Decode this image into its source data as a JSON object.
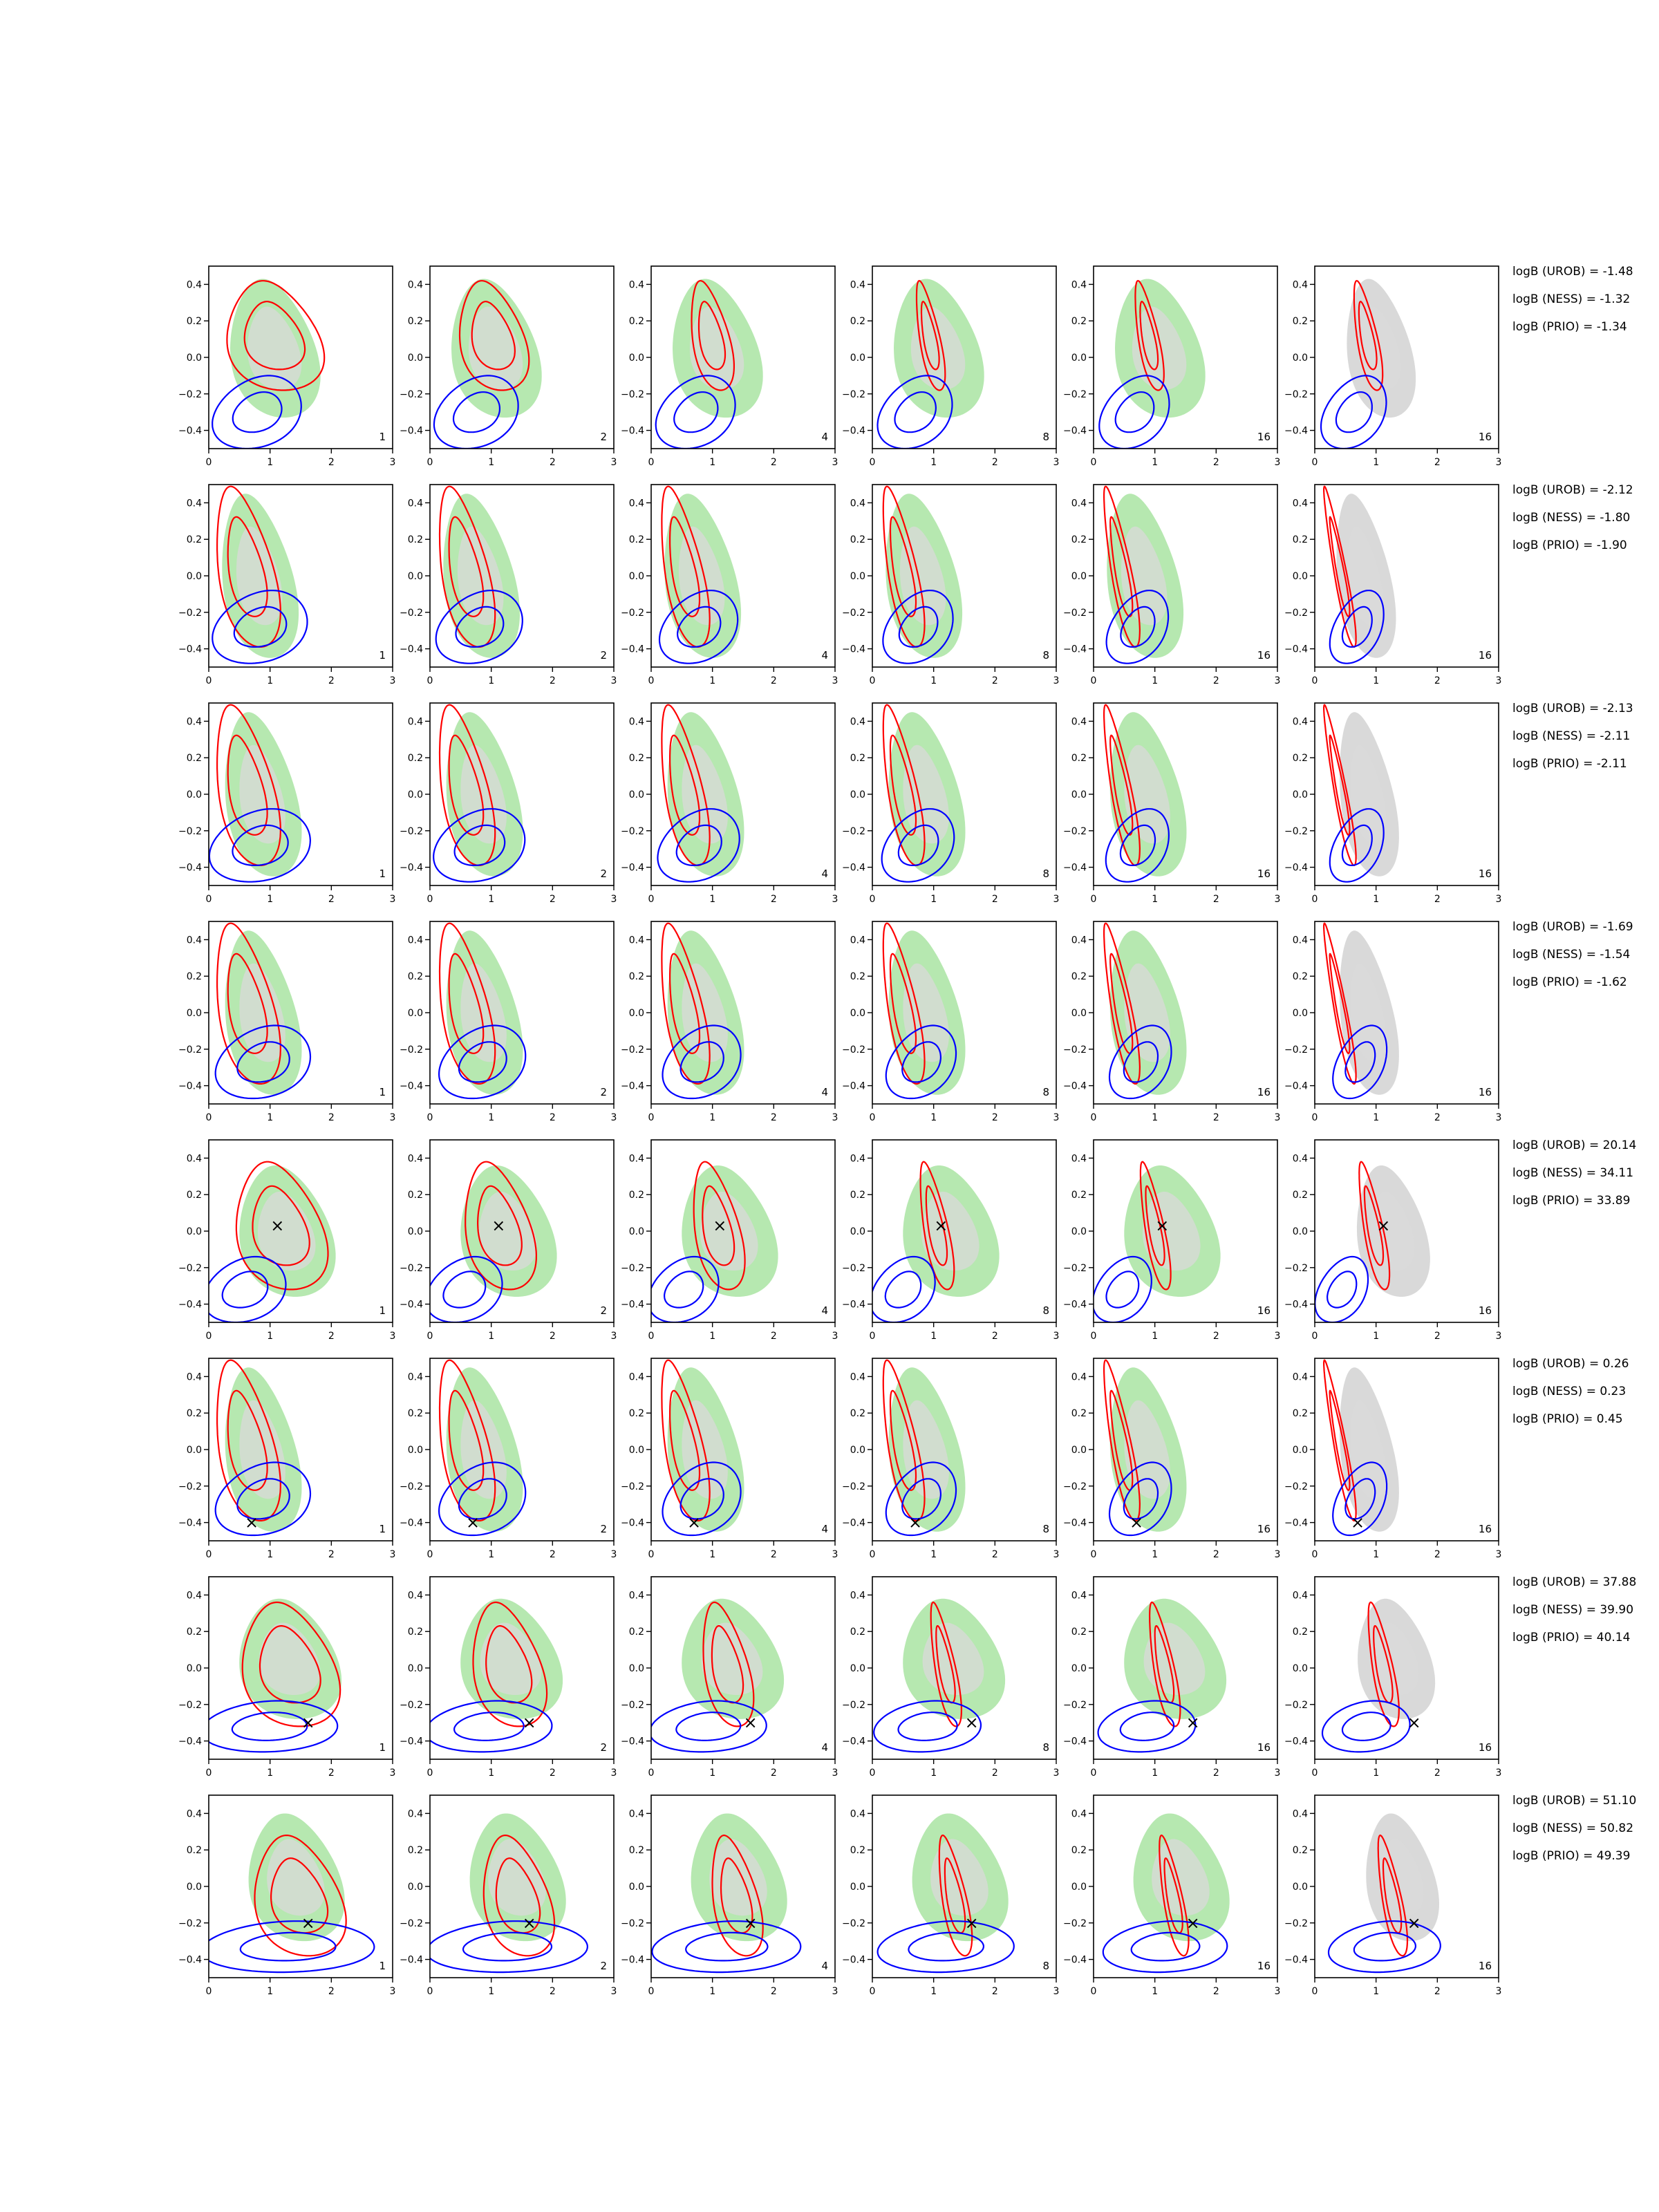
{
  "chart_data": {
    "type": "contour-grid",
    "axes": {
      "x_range": [
        0,
        3
      ],
      "y_range": [
        -0.5,
        0.5
      ],
      "x_ticks": [
        "0",
        "1",
        "2",
        "3"
      ],
      "y_ticks": [
        "0.4",
        "0.2",
        "0.0",
        "−0.2",
        "−0.4"
      ]
    },
    "styles": {
      "green_fill": "#b6e8b0",
      "grey_fill": "#d9d9d9",
      "red_line": "#ff0000",
      "blue_line": "#0000ff",
      "marker": "×"
    },
    "columns": [
      {
        "corner_label": "1",
        "kind": "green"
      },
      {
        "corner_label": "2",
        "kind": "green"
      },
      {
        "corner_label": "4",
        "kind": "green"
      },
      {
        "corner_label": "8",
        "kind": "green"
      },
      {
        "corner_label": "16",
        "kind": "green"
      },
      {
        "corner_label": "16",
        "kind": "grey"
      }
    ],
    "rows": [
      {
        "logB": [
          "logB (UROB) = -1.48",
          "logB (NESS) = -1.32",
          "logB (PRIO) = -1.34"
        ],
        "marker": null,
        "green": {
          "cx": 1.05,
          "cy": 0.05,
          "sx": 0.7,
          "sy": 0.38
        },
        "red": {
          "cx": 1.05,
          "cy": 0.12,
          "sx": 0.75,
          "sy": 0.3,
          "width_decay": 0.3
        },
        "blue": {
          "cx": 0.8,
          "cy": -0.3,
          "sx": 0.7,
          "sy": 0.2,
          "sx_decay": 0.04
        }
      },
      {
        "logB": [
          "logB (UROB) = -2.12",
          "logB (NESS) = -1.80",
          "logB (PRIO) = -1.90"
        ],
        "marker": null,
        "green": {
          "cx": 0.8,
          "cy": 0.0,
          "sx": 0.58,
          "sy": 0.45
        },
        "red": {
          "cx": 0.6,
          "cy": 0.05,
          "sx": 0.45,
          "sy": 0.44,
          "width_decay": 0.16
        },
        "blue": {
          "cx": 0.85,
          "cy": -0.28,
          "sx": 0.75,
          "sy": 0.2,
          "sx_decay": 0.07
        }
      },
      {
        "logB": [
          "logB (UROB) = -2.13",
          "logB (NESS) = -2.11",
          "logB (PRIO) = -2.11"
        ],
        "marker": null,
        "green": {
          "cx": 0.85,
          "cy": 0.0,
          "sx": 0.58,
          "sy": 0.45
        },
        "red": {
          "cx": 0.6,
          "cy": 0.05,
          "sx": 0.45,
          "sy": 0.44,
          "width_decay": 0.16
        },
        "blue": {
          "cx": 0.85,
          "cy": -0.28,
          "sx": 0.8,
          "sy": 0.2,
          "sx_decay": 0.08
        }
      },
      {
        "logB": [
          "logB (UROB) = -1.69",
          "logB (NESS) = -1.54",
          "logB (PRIO) = -1.62"
        ],
        "marker": null,
        "green": {
          "cx": 0.85,
          "cy": 0.0,
          "sx": 0.58,
          "sy": 0.45
        },
        "red": {
          "cx": 0.6,
          "cy": 0.05,
          "sx": 0.45,
          "sy": 0.44,
          "width_decay": 0.16
        },
        "blue": {
          "cx": 0.9,
          "cy": -0.27,
          "sx": 0.75,
          "sy": 0.2,
          "sx_decay": 0.07
        }
      },
      {
        "logB": [
          "logB (UROB) = 20.14",
          "logB (NESS) = 34.11",
          "logB (PRIO) = 33.89"
        ],
        "marker": [
          1.12,
          0.03
        ],
        "green": {
          "cx": 1.25,
          "cy": 0.0,
          "sx": 0.75,
          "sy": 0.36
        },
        "red": {
          "cx": 1.15,
          "cy": 0.03,
          "sx": 0.7,
          "sy": 0.35,
          "width_decay": 0.24
        },
        "blue": {
          "cx": 0.6,
          "cy": -0.32,
          "sx": 0.65,
          "sy": 0.18,
          "sx_decay": 0.05
        }
      },
      {
        "logB": [
          "logB (UROB) = 0.26",
          "logB (NESS) = 0.23",
          "logB (PRIO) = 0.45"
        ],
        "marker": [
          0.7,
          -0.4
        ],
        "green": {
          "cx": 0.85,
          "cy": 0.0,
          "sx": 0.58,
          "sy": 0.45
        },
        "red": {
          "cx": 0.6,
          "cy": 0.05,
          "sx": 0.45,
          "sy": 0.44,
          "width_decay": 0.16
        },
        "blue": {
          "cx": 0.9,
          "cy": -0.27,
          "sx": 0.75,
          "sy": 0.2,
          "sx_decay": 0.07
        }
      },
      {
        "logB": [
          "logB (UROB) = 37.88",
          "logB (NESS) = 39.90",
          "logB (PRIO) = 40.14"
        ],
        "marker": [
          1.62,
          -0.3
        ],
        "green": {
          "cx": 1.3,
          "cy": 0.05,
          "sx": 0.8,
          "sy": 0.33
        },
        "red": {
          "cx": 1.3,
          "cy": 0.02,
          "sx": 0.75,
          "sy": 0.34,
          "width_decay": 0.26
        },
        "blue": {
          "cx": 1.0,
          "cy": -0.32,
          "sx": 1.1,
          "sy": 0.14,
          "sx_decay": 0.08
        }
      },
      {
        "logB": [
          "logB (UROB) = 51.10",
          "logB (NESS) = 50.82",
          "logB (PRIO) = 49.39"
        ],
        "marker": [
          1.62,
          -0.2
        ],
        "green": {
          "cx": 1.4,
          "cy": 0.05,
          "sx": 0.75,
          "sy": 0.35
        },
        "red": {
          "cx": 1.45,
          "cy": -0.05,
          "sx": 0.7,
          "sy": 0.33,
          "width_decay": 0.24
        },
        "blue": {
          "cx": 1.3,
          "cy": -0.33,
          "sx": 1.4,
          "sy": 0.14,
          "sx_decay": 0.1
        }
      }
    ]
  }
}
